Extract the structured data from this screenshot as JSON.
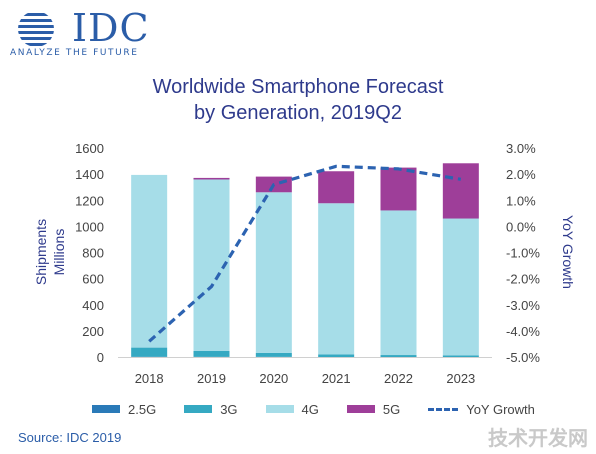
{
  "logo": {
    "wordmark": "IDC",
    "tagline": "ANALYZE THE FUTURE"
  },
  "title_line1": "Worldwide Smartphone Forecast",
  "title_line2": "by Generation, 2019Q2",
  "source": "Source: IDC 2019",
  "watermark": "技术开发网",
  "colors": {
    "2.5G": "#2a7ab8",
    "3G": "#35a9c2",
    "4G": "#a6dde8",
    "5G": "#9e3e99",
    "YoY Growth": "#2c63b1",
    "text": "#444444",
    "title": "#2e3a8c",
    "brand": "#2b5da8"
  },
  "chart_data": {
    "type": "bar",
    "stacked": true,
    "title": "Worldwide Smartphone Forecast by Generation, 2019Q2",
    "categories": [
      "2018",
      "2019",
      "2020",
      "2021",
      "2022",
      "2023"
    ],
    "ylabel": "Shipments Millions",
    "ylabel_lines": [
      "Shipments",
      "Millions"
    ],
    "y2label": "YoY Growth",
    "ylim": [
      0,
      1600
    ],
    "y2lim": [
      -5.0,
      3.0
    ],
    "yticks": [
      "0",
      "200",
      "400",
      "600",
      "800",
      "1000",
      "1200",
      "1400",
      "1600"
    ],
    "y2ticks": [
      "-5.0%",
      "-4.0%",
      "-3.0%",
      "-2.0%",
      "-1.0%",
      "0.0%",
      "1.0%",
      "2.0%",
      "3.0%"
    ],
    "series": [
      {
        "name": "2.5G",
        "values": [
          2,
          1,
          1,
          0,
          0,
          0
        ]
      },
      {
        "name": "3G",
        "values": [
          70,
          45,
          30,
          20,
          15,
          12
        ]
      },
      {
        "name": "4G",
        "values": [
          1322,
          1313,
          1230,
          1157,
          1107,
          1048
        ]
      },
      {
        "name": "5G",
        "values": [
          0,
          12,
          120,
          245,
          328,
          423
        ]
      }
    ],
    "line_series": {
      "name": "YoY Growth",
      "axis": "right",
      "values": [
        -4.4,
        -2.3,
        1.6,
        2.3,
        2.2,
        1.8
      ]
    },
    "legend": [
      "2.5G",
      "3G",
      "4G",
      "5G",
      "YoY Growth"
    ],
    "legend_position": "bottom",
    "grid": false
  }
}
